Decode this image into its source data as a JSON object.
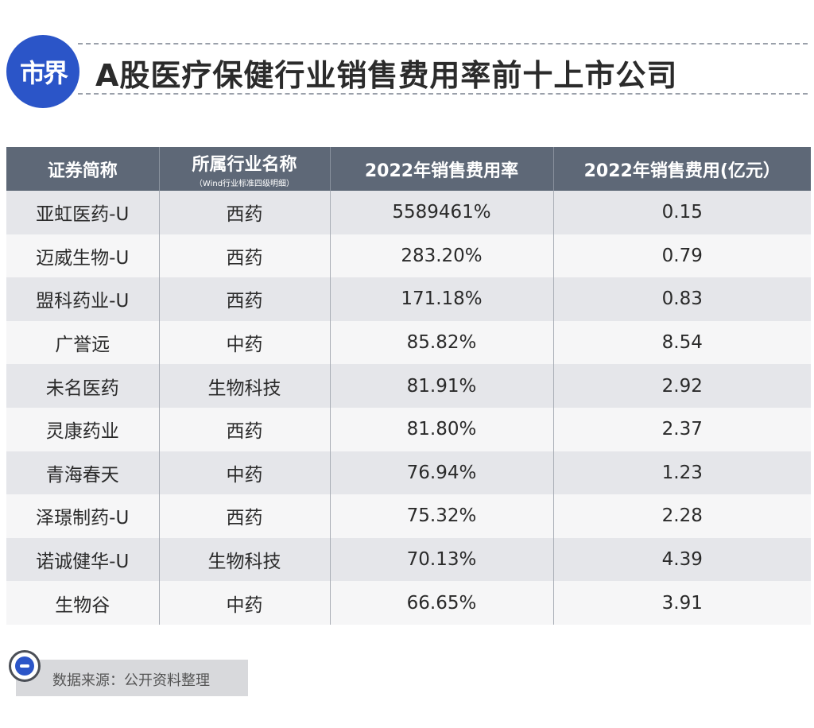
{
  "header": {
    "logo_text": "市界",
    "title": "A股医疗保健行业销售费用率前十上市公司"
  },
  "table": {
    "columns": [
      {
        "label": "证券简称",
        "sub": ""
      },
      {
        "label": "所属行业名称",
        "sub": "（Wind行业标准四级明细）"
      },
      {
        "label": "2022年销售费用率",
        "sub": ""
      },
      {
        "label": "2022年销售费用(亿元）",
        "sub": ""
      }
    ],
    "rows": [
      [
        "亚虹医药-U",
        "西药",
        "5589461%",
        "0.15"
      ],
      [
        "迈威生物-U",
        "西药",
        "283.20%",
        "0.79"
      ],
      [
        "盟科药业-U",
        "西药",
        "171.18%",
        "0.83"
      ],
      [
        "广誉远",
        "中药",
        "85.82%",
        "8.54"
      ],
      [
        "未名医药",
        "生物科技",
        "81.91%",
        "2.92"
      ],
      [
        "灵康药业",
        "西药",
        "81.80%",
        "2.37"
      ],
      [
        "青海春天",
        "中药",
        "76.94%",
        "1.23"
      ],
      [
        "泽璟制药-U",
        "西药",
        "75.32%",
        "2.28"
      ],
      [
        "诺诚健华-U",
        "生物科技",
        "70.13%",
        "4.39"
      ],
      [
        "生物谷",
        "中药",
        "66.65%",
        "3.91"
      ]
    ]
  },
  "footer": {
    "source_text": "数据来源：公开资料整理",
    "icon": "info-circle-icon"
  },
  "colors": {
    "brand_blue": "#2b55c8",
    "header_bg": "#5e6877",
    "row_odd": "#e5e6ea",
    "row_even": "#f6f6f7"
  }
}
